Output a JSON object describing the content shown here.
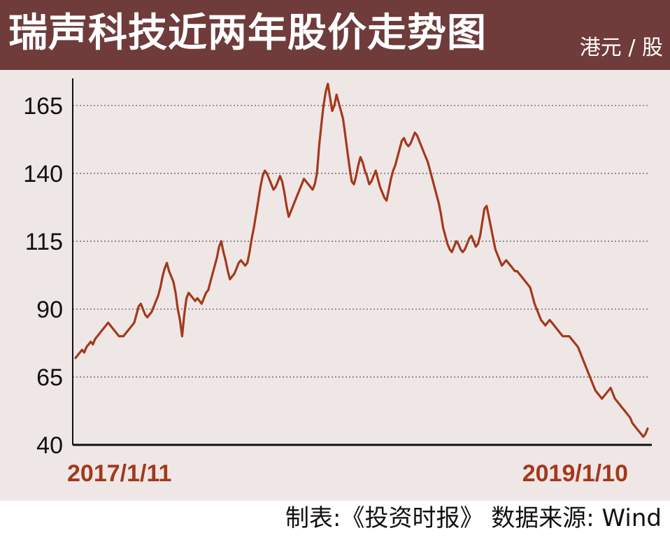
{
  "header": {
    "title": "瑞声科技近两年股价走势图",
    "unit": "港元 / 股"
  },
  "footer": {
    "source": "制表:《投资时报》 数据来源: Wind"
  },
  "colors": {
    "header_bg": "#6f3b3b",
    "panel_bg": "#efe7e6",
    "line": "#a3391b",
    "date_label": "#a3391b",
    "axis": "#111111",
    "grid": "#555555"
  },
  "chart_data": {
    "type": "line",
    "x_start_label": "2017/1/11",
    "x_end_label": "2019/1/10",
    "ylim": [
      40,
      175
    ],
    "yticks": [
      40,
      65,
      90,
      115,
      140,
      165
    ],
    "grid": "horizontal-dotted",
    "series": [
      {
        "values": [
          72,
          73,
          74,
          75,
          74,
          76,
          77,
          78,
          77,
          79,
          80,
          81,
          82,
          83,
          84,
          85,
          84,
          83,
          82,
          81,
          80,
          80,
          80,
          81,
          82,
          83,
          84,
          85,
          88,
          91,
          92,
          90,
          88,
          87,
          88,
          89,
          91,
          93,
          95,
          98,
          102,
          105,
          107,
          104,
          102,
          100,
          96,
          90,
          86,
          80,
          88,
          94,
          96,
          95,
          94,
          93,
          94,
          93,
          92,
          94,
          96,
          97,
          100,
          103,
          106,
          109,
          113,
          115,
          111,
          108,
          104,
          101,
          102,
          103,
          105,
          107,
          108,
          107,
          106,
          107,
          111,
          116,
          120,
          125,
          130,
          135,
          139,
          141,
          140,
          138,
          136,
          134,
          135,
          137,
          139,
          137,
          133,
          128,
          124,
          126,
          128,
          130,
          132,
          134,
          136,
          138,
          137,
          136,
          135,
          134,
          136,
          140,
          150,
          158,
          165,
          170,
          173,
          168,
          163,
          165,
          169,
          166,
          163,
          160,
          154,
          148,
          142,
          137,
          136,
          139,
          143,
          146,
          144,
          141,
          139,
          136,
          137,
          139,
          141,
          138,
          135,
          133,
          131,
          130,
          134,
          138,
          141,
          143,
          146,
          149,
          152,
          153,
          151,
          150,
          151,
          153,
          155,
          154,
          152,
          150,
          148,
          146,
          144,
          141,
          138,
          135,
          132,
          129,
          125,
          120,
          117,
          114,
          112,
          111,
          113,
          115,
          114,
          112,
          111,
          112,
          114,
          116,
          117,
          115,
          113,
          114,
          117,
          122,
          127,
          128,
          124,
          120,
          116,
          112,
          110,
          108,
          106,
          107,
          108,
          107,
          106,
          105,
          104,
          104,
          103,
          102,
          101,
          100,
          99,
          98,
          95,
          92,
          90,
          88,
          86,
          85,
          84,
          85,
          86,
          85,
          84,
          83,
          82,
          81,
          80,
          80,
          80,
          80,
          79,
          78,
          77,
          76,
          74,
          72,
          70,
          68,
          66,
          64,
          62,
          60,
          59,
          58,
          57,
          58,
          59,
          60,
          61,
          59,
          57,
          56,
          55,
          54,
          53,
          52,
          51,
          50,
          48,
          47,
          46,
          45,
          44,
          43,
          44,
          46
        ]
      }
    ]
  }
}
